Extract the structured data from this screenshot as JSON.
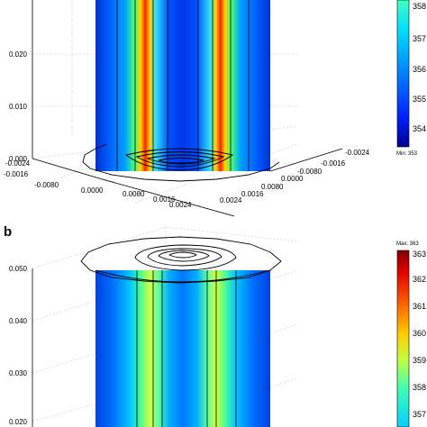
{
  "panel_b_label": "b",
  "panel_a": {
    "z_ticks": [
      "0.020",
      "0.010",
      "0.000"
    ],
    "x_ticks": [
      "-0.0024",
      "-0.0016",
      "-0.0080",
      "0.0000",
      "0.0080",
      "0.0016",
      "0.0024"
    ],
    "y_ticks": [
      "-0.0024",
      "-0.0016",
      "-0.0080",
      "0.0000",
      "0.0080",
      "0.0016",
      "0.0024"
    ],
    "colorbar": {
      "ticks": [
        "358",
        "357",
        "356",
        "355",
        "354"
      ],
      "min_label": "Min: 353"
    }
  },
  "panel_b": {
    "z_ticks": [
      "0.050",
      "0.040",
      "0.030",
      "0.020"
    ],
    "colorbar": {
      "max_label": "Max: 363",
      "ticks": [
        "363",
        "362",
        "361",
        "360",
        "359",
        "358",
        "357"
      ]
    }
  },
  "colors": {
    "jet_low": "#00008f",
    "jet_mid": "#7fff7f",
    "jet_high": "#800000"
  }
}
